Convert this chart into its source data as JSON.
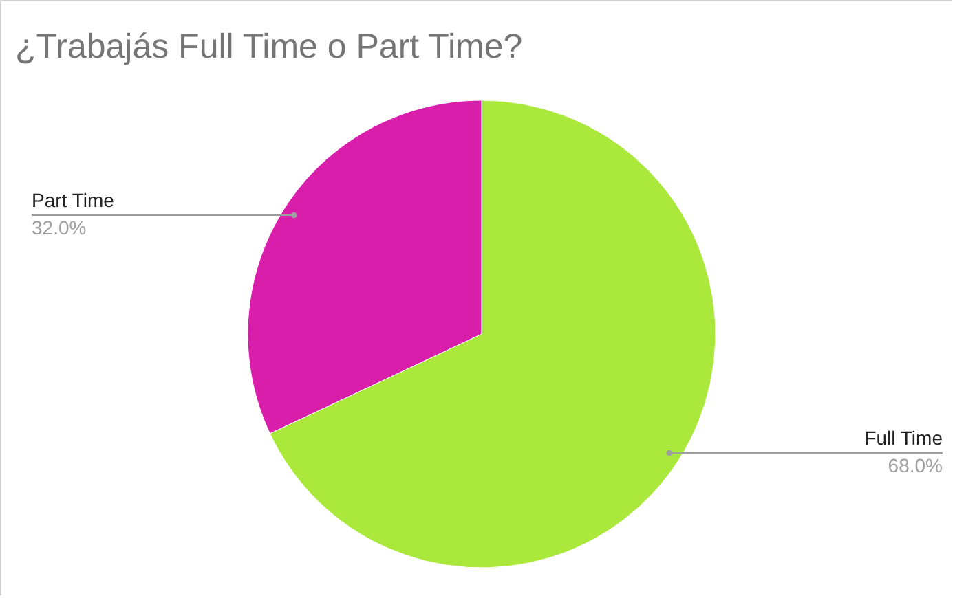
{
  "chart_data": {
    "type": "pie",
    "title": "¿Trabajás Full Time o Part Time?",
    "categories": [
      "Full Time",
      "Part Time"
    ],
    "values": [
      68,
      32
    ],
    "value_labels": [
      "68.0%",
      "32.0%"
    ],
    "colors": [
      "#abe83c",
      "#d81eab"
    ],
    "legend": false
  }
}
